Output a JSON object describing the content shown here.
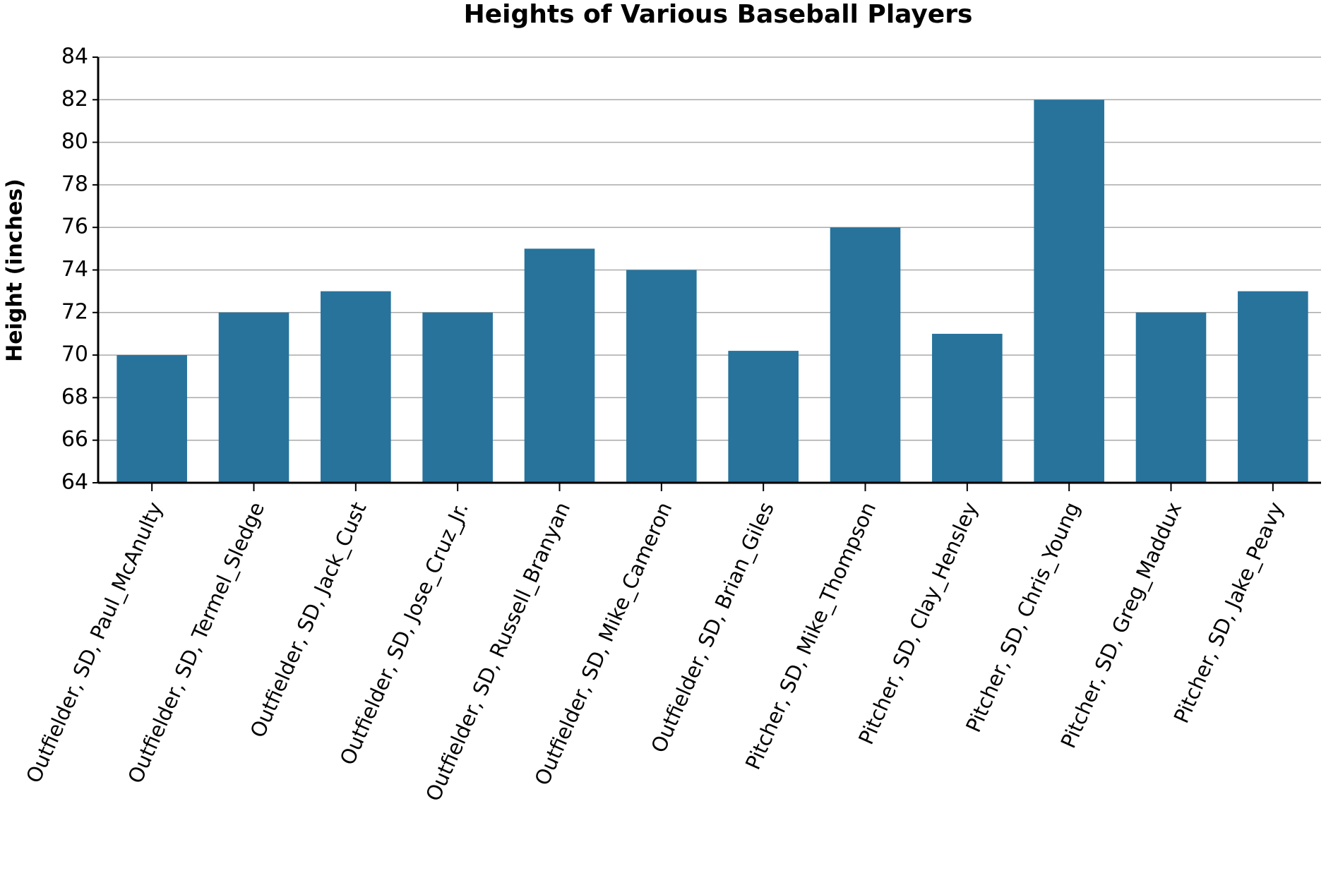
{
  "chart_data": {
    "type": "bar",
    "title": "Heights of Various Baseball Players",
    "y_label": "Height (inches)",
    "categories": [
      "Outfielder, SD, Paul_McAnulty",
      "Outfielder, SD, Termel_Sledge",
      "Outfielder, SD, Jack_Cust",
      "Outfielder, SD, Jose_Cruz_Jr.",
      "Outfielder, SD, Russell_Branyan",
      "Outfielder, SD, Mike_Cameron",
      "Outfielder, SD, Brian_Giles",
      "Pitcher, SD, Mike_Thompson",
      "Pitcher, SD, Clay_Hensley",
      "Pitcher, SD, Chris_Young",
      "Pitcher, SD, Greg_Maddux",
      "Pitcher, SD, Jake_Peavy"
    ],
    "values": [
      70,
      72,
      73,
      72,
      75,
      74,
      70.2,
      76,
      71,
      82,
      72,
      73
    ],
    "color": "#27739c",
    "ylim": [
      64,
      84
    ],
    "yticks": [
      64,
      66,
      68,
      70,
      72,
      74,
      76,
      78,
      80,
      82,
      84
    ],
    "grid": true
  }
}
